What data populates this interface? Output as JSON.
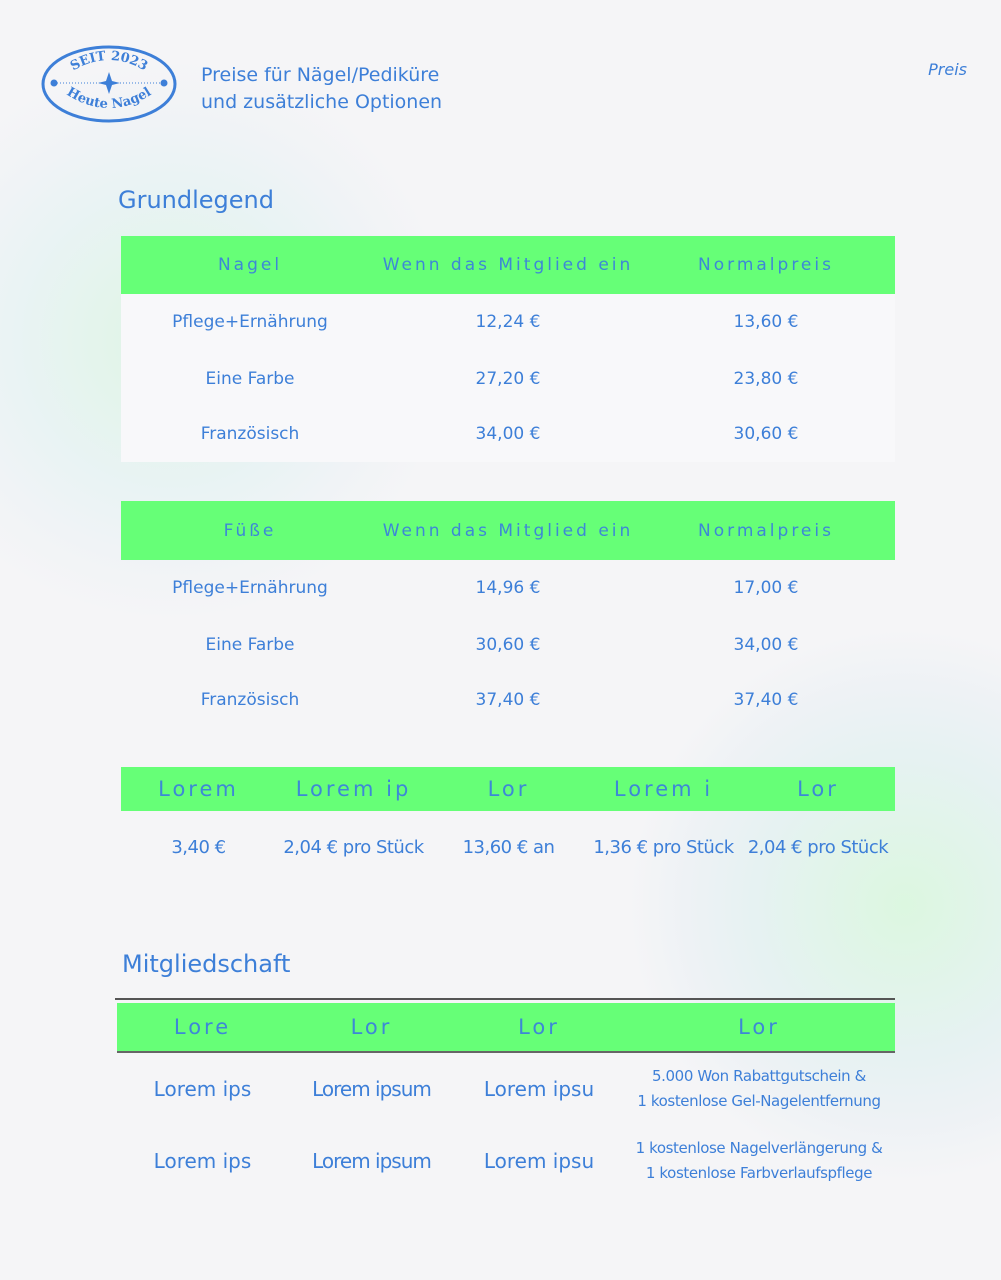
{
  "logo": {
    "top_text": "SEIT 2023",
    "bottom_text": "Heute Nagel"
  },
  "header": {
    "title_line1": "Preise für Nägel/Pediküre",
    "title_line2": "und zusätzliche Optionen",
    "tag": "Preis"
  },
  "colors": {
    "accent": "#66ff77",
    "text": "#3d7fd8",
    "background": "#f5f5f7"
  },
  "basic": {
    "title": "Grundlegend",
    "nails": {
      "headers": [
        "Nagel",
        "Wenn das Mitglied ein",
        "Normalpreis"
      ],
      "rows": [
        [
          "Pflege+Ernährung",
          "12,24 €",
          "13,60 €"
        ],
        [
          "Eine Farbe",
          "27,20 €",
          "23,80 €"
        ],
        [
          "Französisch",
          "34,00 €",
          "30,60 €"
        ]
      ]
    },
    "feet": {
      "headers": [
        "Füße",
        "Wenn das Mitglied ein",
        "Normalpreis"
      ],
      "rows": [
        [
          "Pflege+Ernährung",
          "14,96 €",
          "17,00 €"
        ],
        [
          "Eine Farbe",
          "30,60 €",
          "34,00 €"
        ],
        [
          "Französisch",
          "37,40 €",
          "37,40 €"
        ]
      ]
    },
    "extras": {
      "headers": [
        "Lorem",
        "Lorem ip",
        "Lor",
        "Lorem i",
        "Lor"
      ],
      "values": [
        "3,40 €",
        "2,04 € pro Stück",
        "13,60 € an",
        "1,36 € pro Stück",
        "2,04 € pro Stück"
      ]
    }
  },
  "membership": {
    "title": "Mitgliedschaft",
    "headers": [
      "Lore",
      "Lor",
      "Lor",
      "Lor"
    ],
    "rows": [
      [
        "Lorem ips",
        "Lorem ipsum",
        "Lorem ipsu",
        "5.000 Won Rabattgutschein &",
        "1 kostenlose Gel-Nagelentfernung"
      ],
      [
        "Lorem ips",
        "Lorem ipsum",
        "Lorem ipsu",
        "1 kostenlose Nagelverlängerung &",
        "1 kostenlose Farbverlaufspflege"
      ]
    ]
  }
}
